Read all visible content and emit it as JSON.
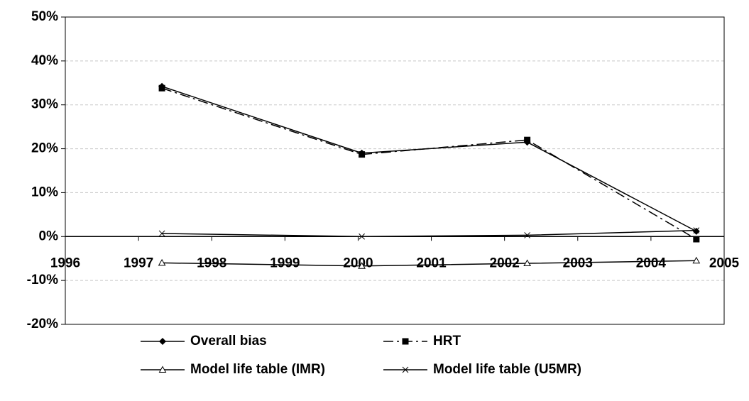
{
  "chart_data": {
    "type": "line",
    "x": [
      1997.32,
      2000.05,
      2002.31,
      2004.62
    ],
    "series": [
      {
        "name": "Overall bias",
        "color": "#000000",
        "marker": "diamond",
        "dash": "solid",
        "values": [
          34.2,
          19.0,
          21.5,
          1.2
        ]
      },
      {
        "name": "HRT",
        "color": "#000000",
        "marker": "square",
        "dash": "dashdot",
        "values": [
          33.8,
          18.7,
          22.0,
          -0.6
        ]
      },
      {
        "name": "Model life table (IMR)",
        "color": "#000000",
        "marker": "triangle-open",
        "dash": "solid",
        "values": [
          -6.0,
          -6.7,
          -6.1,
          -5.5
        ]
      },
      {
        "name": "Model life table (U5MR)",
        "color": "#000000",
        "marker": "x",
        "dash": "solid",
        "values": [
          0.7,
          0.0,
          0.3,
          1.4
        ]
      }
    ],
    "xlim": [
      1996,
      2005
    ],
    "xticks": [
      1996,
      1997,
      1998,
      1999,
      2000,
      2001,
      2002,
      2003,
      2004,
      2005
    ],
    "ylim": [
      -20,
      50
    ],
    "yticks": [
      {
        "value": -20,
        "label": "-20%"
      },
      {
        "value": -10,
        "label": "-10%"
      },
      {
        "value": 0,
        "label": "0%"
      },
      {
        "value": 10,
        "label": "10%"
      },
      {
        "value": 20,
        "label": "20%"
      },
      {
        "value": 30,
        "label": "30%"
      },
      {
        "value": 40,
        "label": "40%"
      },
      {
        "value": 50,
        "label": "50%"
      }
    ],
    "grid": true,
    "legend": "bottom"
  }
}
